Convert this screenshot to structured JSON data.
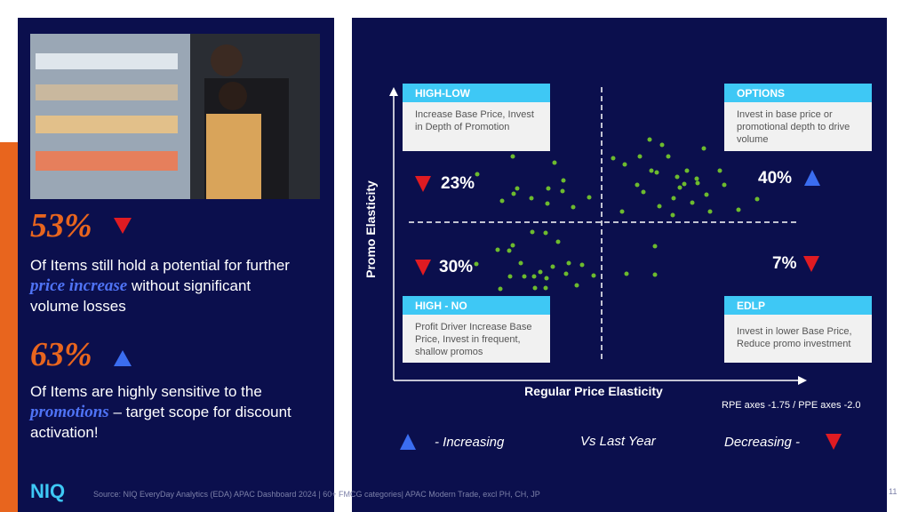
{
  "stats": [
    {
      "value": "53%",
      "text_before": "Of Items still hold a potential for further",
      "emphasis": "price increase",
      "text_after": "without significant volume losses"
    },
    {
      "value": "63%",
      "text_before": "Of Items are highly sensitive to the",
      "emphasis": "promotions",
      "text_after": "– target scope for discount activation!"
    }
  ],
  "chart": {
    "y_label": "Promo Elasticity",
    "x_label": "Regular Price Elasticity",
    "note": "RPE axes -1.75 / PPE axes -2.0",
    "quadrants": [
      {
        "title": "HIGH-LOW",
        "text": "Increase Base Price, Invest in Depth of Promotion",
        "percent": "23%"
      },
      {
        "title": "OPTIONS",
        "text": "Invest in base price or promotional depth to drive volume",
        "percent": "40%"
      },
      {
        "title": "HIGH - NO",
        "text": "Profit Driver Increase Base Price, Invest in frequent, shallow promos",
        "percent": "30%"
      },
      {
        "title": "EDLP",
        "text": "Invest in lower Base Price, Reduce promo investment",
        "percent": "7%"
      }
    ]
  },
  "legend": {
    "increasing": "- Increasing",
    "comparison": "Vs Last Year",
    "decreasing": "Decreasing -"
  },
  "footer": {
    "logo": "NIQ",
    "source": "Source: NIQ EveryDay Analytics (EDA) APAC Dashboard 2024 | 60+ FMCG categories| APAC Modern Trade, excl PH, CH, JP",
    "page": "11"
  }
}
